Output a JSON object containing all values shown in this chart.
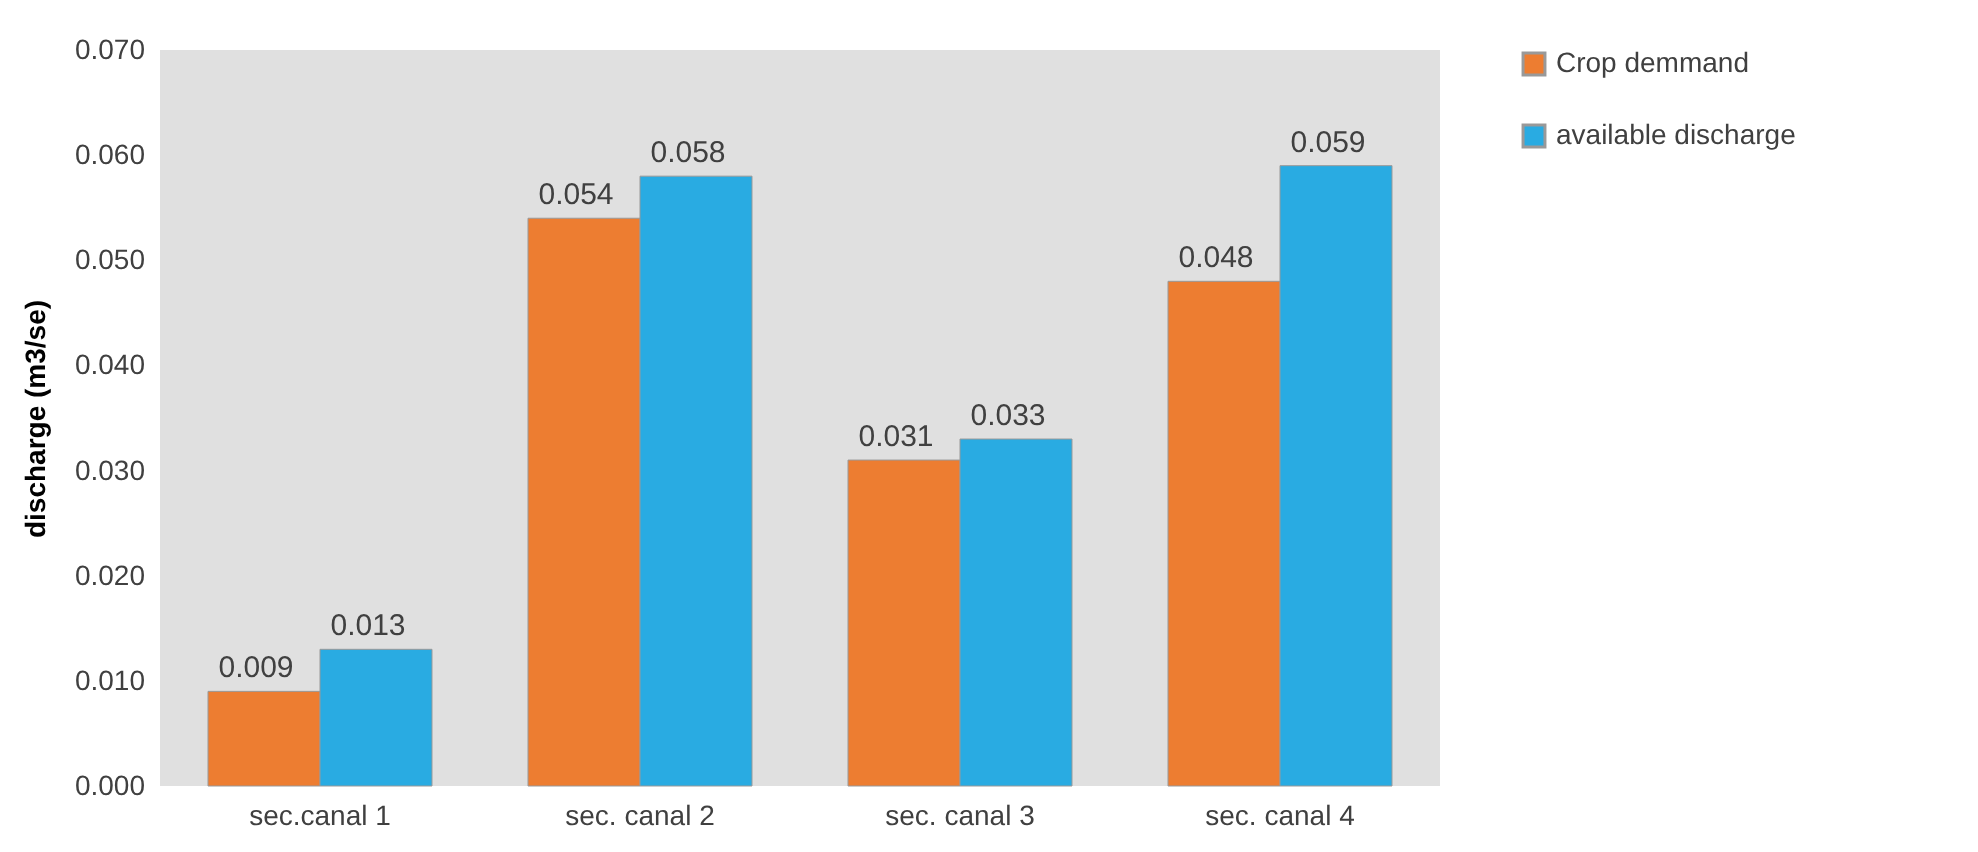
{
  "chart_data": {
    "type": "bar",
    "ylabel": "discharge (m3/se)",
    "categories": [
      "sec.canal 1",
      "sec. canal 2",
      "sec. canal 3",
      "sec. canal 4"
    ],
    "series": [
      {
        "name": "Crop demmand",
        "color": "#ed7d31",
        "values": [
          0.009,
          0.054,
          0.031,
          0.048
        ]
      },
      {
        "name": "available discharge",
        "color": "#29abe2",
        "values": [
          0.013,
          0.058,
          0.033,
          0.059
        ]
      }
    ],
    "ylim": [
      0,
      0.07
    ],
    "yticks": [
      "0.000",
      "0.010",
      "0.020",
      "0.030",
      "0.040",
      "0.050",
      "0.060",
      "0.070"
    ],
    "data_labels": true,
    "legend": "right",
    "grid": false
  }
}
